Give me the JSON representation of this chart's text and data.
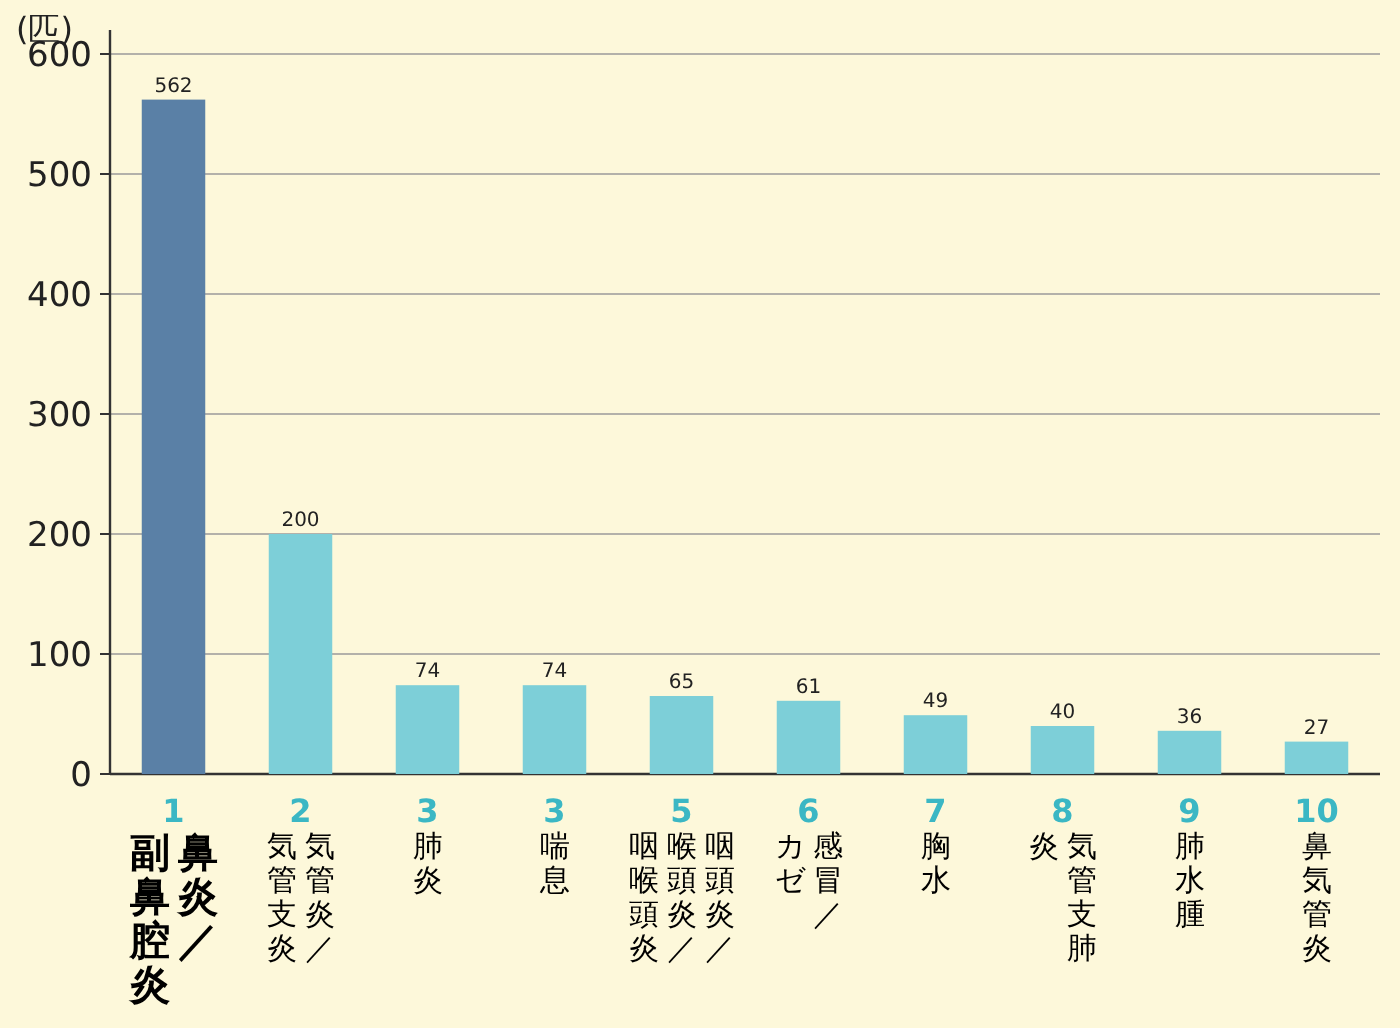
{
  "chart_data": {
    "type": "bar",
    "ylabel": "(匹)",
    "categories": [
      "1 鼻炎／副鼻腔炎",
      "2 気管炎／気管支炎",
      "3 肺炎",
      "3 喘息",
      "5 咽頭炎／喉頭炎／咽喉頭炎",
      "6 感冒／カゼ",
      "7 胸水",
      "8 気管支肺炎",
      "9 肺水腫",
      "10 鼻気管炎"
    ],
    "values": [
      562,
      200,
      74,
      74,
      65,
      61,
      49,
      40,
      36,
      27
    ],
    "colors": [
      "#5a80a6",
      "#7dcfd8",
      "#7dcfd8",
      "#7dcfd8",
      "#7dcfd8",
      "#7dcfd8",
      "#7dcfd8",
      "#7dcfd8",
      "#7dcfd8",
      "#7dcfd8"
    ],
    "ylim": [
      0,
      620
    ],
    "yticks": [
      0,
      100,
      200,
      300,
      400,
      500,
      600
    ],
    "grid": "y",
    "data_labels": true
  }
}
